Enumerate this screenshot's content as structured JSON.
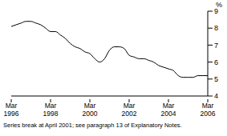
{
  "chart_data": {
    "type": "line",
    "ylabel": "%",
    "annotations": [
      "Series break at April 2001; see paragraph 13 of Explanatory Notes."
    ],
    "categories": [
      "Mar 1996",
      null,
      null,
      null,
      null,
      null,
      null,
      null,
      "Mar 1998",
      null,
      null,
      null,
      null,
      null,
      null,
      null,
      "Mar 2000",
      null,
      null,
      null,
      null,
      null,
      null,
      null,
      "Mar 2002",
      null,
      null,
      null,
      null,
      null,
      null,
      null,
      "Mar 2004",
      null,
      null,
      null,
      null,
      null,
      null,
      null,
      "Mar 2006"
    ],
    "values": [
      8.1,
      8.2,
      8.3,
      8.4,
      8.4,
      8.3,
      8.2,
      8.0,
      7.8,
      7.8,
      7.6,
      7.4,
      7.1,
      6.9,
      6.8,
      6.6,
      6.5,
      6.2,
      6.0,
      6.2,
      6.7,
      6.9,
      6.9,
      6.8,
      6.4,
      6.3,
      6.2,
      6.2,
      6.1,
      6.0,
      5.8,
      5.7,
      5.6,
      5.5,
      5.2,
      5.1,
      5.1,
      5.1,
      5.2,
      5.2,
      5.2
    ],
    "color": "#000000",
    "ylim": [
      4,
      9
    ],
    "yticks": [
      4,
      5,
      6,
      7,
      8,
      9
    ],
    "grid": false
  }
}
